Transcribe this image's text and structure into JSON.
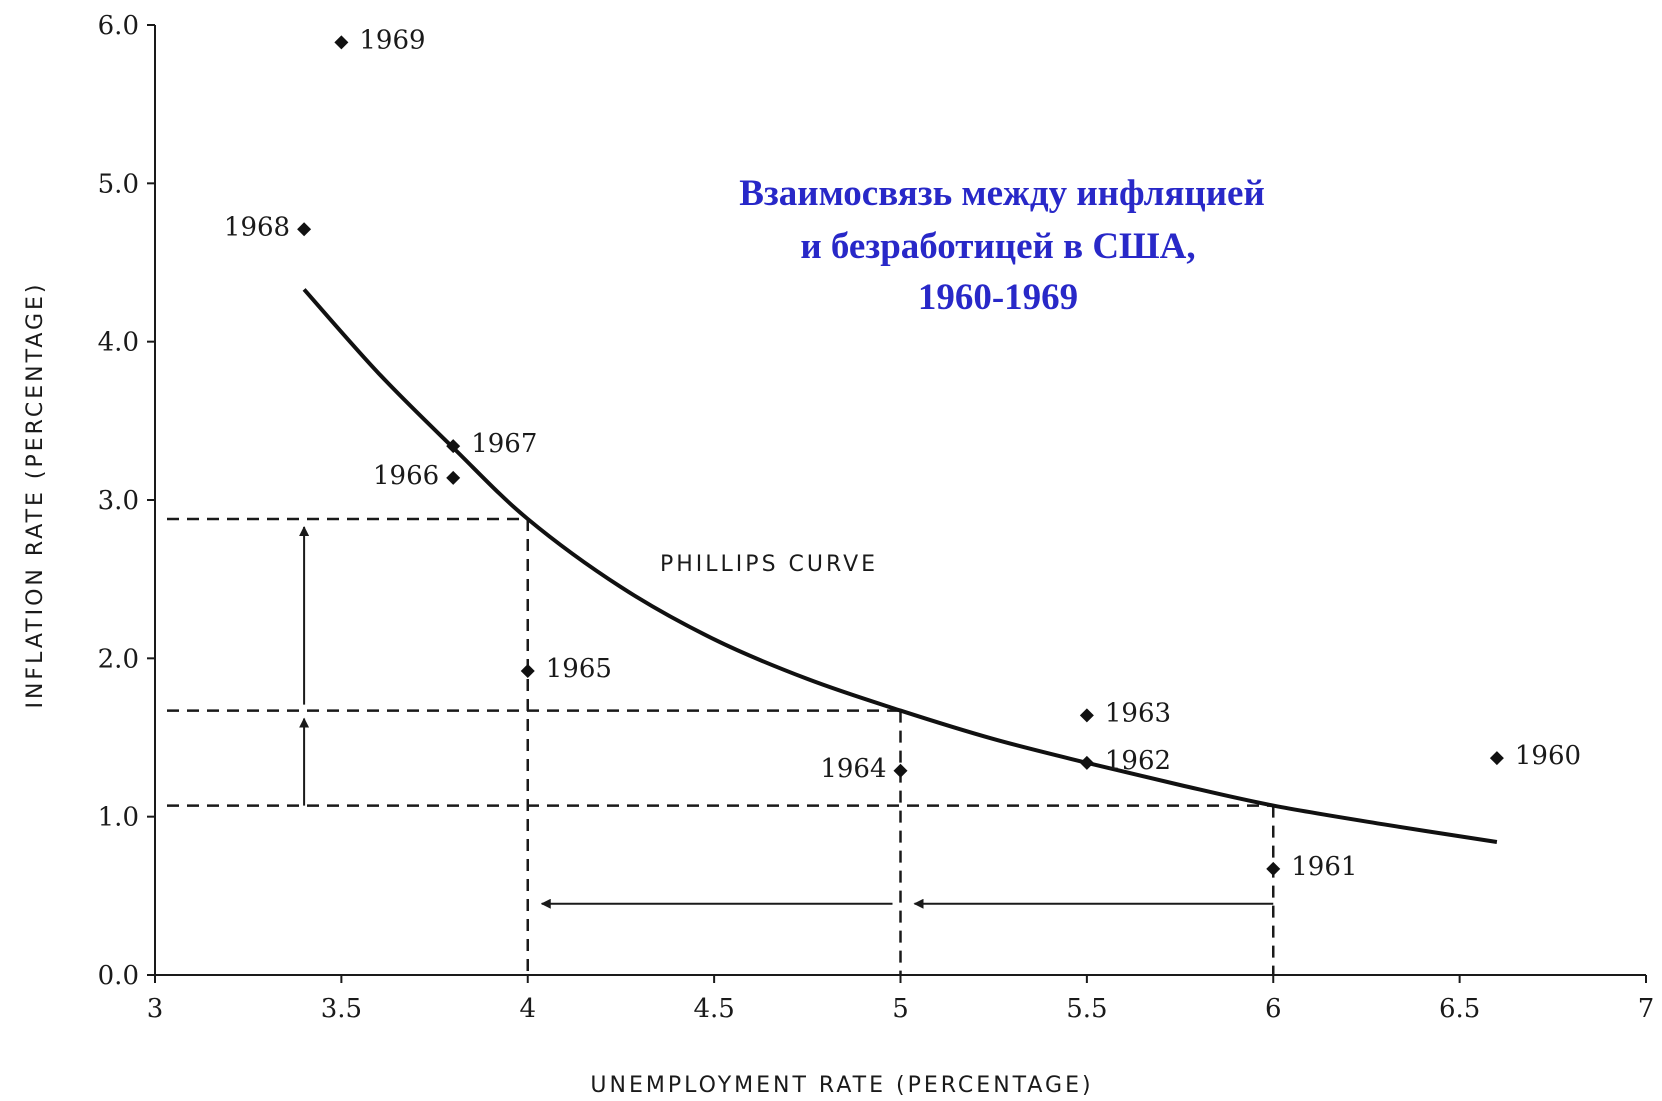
{
  "chart_data": {
    "type": "scatter",
    "title_lines": [
      "Взаимосвязь между инфляцией",
      "и безработицей в США,",
      "1960-1969"
    ],
    "xlabel": "UNEMPLOYMENT RATE (PERCENTAGE)",
    "ylabel": "INFLATION RATE (PERCENTAGE)",
    "xlim": [
      3,
      7
    ],
    "ylim": [
      0,
      6
    ],
    "x_ticks": [
      "3",
      "3.5",
      "4",
      "4.5",
      "5",
      "5.5",
      "6",
      "6.5",
      "7"
    ],
    "y_ticks": [
      "0.0",
      "1.0",
      "2.0",
      "3.0",
      "4.0",
      "5.0",
      "6.0"
    ],
    "points": [
      {
        "label": "1960",
        "x": 6.6,
        "y": 1.37
      },
      {
        "label": "1961",
        "x": 6.0,
        "y": 0.67
      },
      {
        "label": "1962",
        "x": 5.5,
        "y": 1.34
      },
      {
        "label": "1963",
        "x": 5.5,
        "y": 1.64
      },
      {
        "label": "1964",
        "x": 5.0,
        "y": 1.29
      },
      {
        "label": "1965",
        "x": 4.0,
        "y": 1.92
      },
      {
        "label": "1966",
        "x": 3.8,
        "y": 3.14
      },
      {
        "label": "1967",
        "x": 3.8,
        "y": 3.34
      },
      {
        "label": "1968",
        "x": 3.4,
        "y": 4.71
      },
      {
        "label": "1969",
        "x": 3.5,
        "y": 5.89
      }
    ],
    "curve": {
      "label": "PHILLIPS CURVE",
      "points": [
        [
          3.4,
          4.33
        ],
        [
          3.6,
          3.8
        ],
        [
          3.8,
          3.33
        ],
        [
          4.0,
          2.88
        ],
        [
          4.25,
          2.45
        ],
        [
          4.5,
          2.12
        ],
        [
          4.75,
          1.87
        ],
        [
          5.0,
          1.67
        ],
        [
          5.25,
          1.49
        ],
        [
          5.5,
          1.34
        ],
        [
          5.75,
          1.2
        ],
        [
          6.0,
          1.07
        ],
        [
          6.3,
          0.95
        ],
        [
          6.6,
          0.84
        ]
      ]
    },
    "reference_points": [
      {
        "x": 4.0,
        "y": 2.88
      },
      {
        "x": 5.0,
        "y": 1.67
      },
      {
        "x": 6.0,
        "y": 1.07
      }
    ],
    "grid": false,
    "legend": "none"
  }
}
